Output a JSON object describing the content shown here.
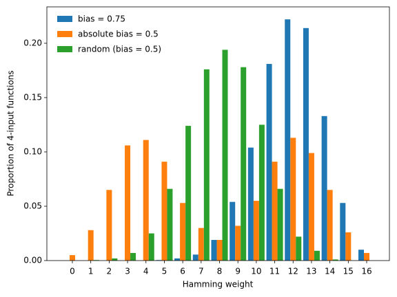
{
  "chart_data": {
    "type": "bar",
    "x_label": "Hamming weight",
    "y_label": "Proportion of 4-input functions",
    "categories": [
      "0",
      "1",
      "2",
      "3",
      "4",
      "5",
      "6",
      "7",
      "8",
      "9",
      "10",
      "11",
      "12",
      "13",
      "14",
      "15",
      "16"
    ],
    "series": [
      {
        "name": "bias = 0.75",
        "color": "#1f77b4",
        "values": [
          0,
          0,
          0,
          0,
          0,
          0.0005,
          0.002,
          0.0055,
          0.019,
          0.054,
          0.104,
          0.181,
          0.222,
          0.214,
          0.133,
          0.053,
          0.01
        ]
      },
      {
        "name": "absolute bias = 0.5",
        "color": "#ff7f0e",
        "values": [
          0.005,
          0.028,
          0.065,
          0.106,
          0.111,
          0.091,
          0.053,
          0.03,
          0.019,
          0.032,
          0.055,
          0.091,
          0.113,
          0.099,
          0.065,
          0.026,
          0.007
        ]
      },
      {
        "name": "random (bias = 0.5)",
        "color": "#2ca02c",
        "values": [
          0,
          0.0005,
          0.002,
          0.007,
          0.025,
          0.066,
          0.124,
          0.176,
          0.194,
          0.178,
          0.125,
          0.066,
          0.022,
          0.009,
          0.001,
          0,
          0
        ]
      }
    ],
    "ylim": [
      0,
      0.2335
    ],
    "yticks": [
      {
        "value": 0,
        "label": "0.00"
      },
      {
        "value": 0.05,
        "label": "0.05"
      },
      {
        "value": 0.1,
        "label": "0.10"
      },
      {
        "value": 0.15,
        "label": "0.15"
      },
      {
        "value": 0.2,
        "label": "0.20"
      }
    ],
    "legend": "upper left"
  }
}
